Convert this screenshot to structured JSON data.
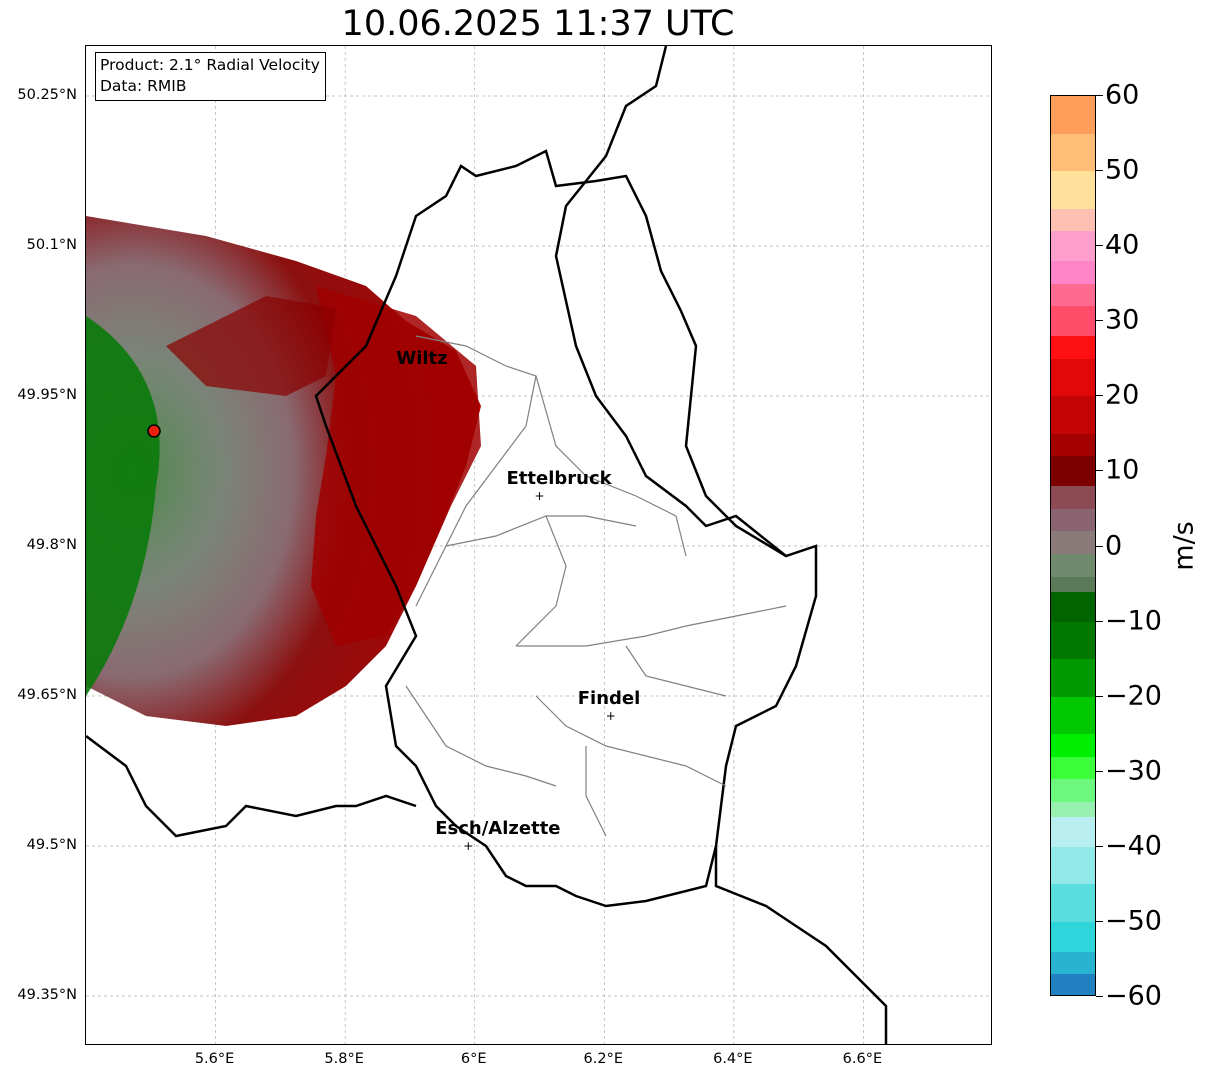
{
  "title": "10.06.2025 11:37 UTC",
  "info": {
    "product": "Product: 2.1° Radial Velocity",
    "data_source": "Data: RMIB"
  },
  "axes": {
    "lat_labels": [
      {
        "lat": 50.25,
        "label": "50.25°N"
      },
      {
        "lat": 50.1,
        "label": "50.1°N"
      },
      {
        "lat": 49.95,
        "label": "49.95°N"
      },
      {
        "lat": 49.8,
        "label": "49.8°N"
      },
      {
        "lat": 49.65,
        "label": "49.65°N"
      },
      {
        "lat": 49.5,
        "label": "49.5°N"
      },
      {
        "lat": 49.35,
        "label": "49.35°N"
      }
    ],
    "lon_labels": [
      {
        "lon": 5.6,
        "label": "5.6°E"
      },
      {
        "lon": 5.8,
        "label": "5.8°E"
      },
      {
        "lon": 6.0,
        "label": "6°E"
      },
      {
        "lon": 6.2,
        "label": "6.2°E"
      },
      {
        "lon": 6.4,
        "label": "6.4°E"
      },
      {
        "lon": 6.6,
        "label": "6.6°E"
      }
    ],
    "lon_range": [
      5.4,
      6.8
    ],
    "lat_range": [
      49.3,
      50.3
    ],
    "grid": true
  },
  "cities": [
    {
      "name": "Wiltz",
      "lon": 5.93,
      "lat": 49.97,
      "marker": false
    },
    {
      "name": "Ettelbruck",
      "lon": 6.1,
      "lat": 49.85,
      "marker": true
    },
    {
      "name": "Findel",
      "lon": 6.21,
      "lat": 49.63,
      "marker": true
    },
    {
      "name": "Esch/Alzette",
      "lon": 5.99,
      "lat": 49.5,
      "marker": true
    }
  ],
  "radar_site": {
    "lon": 5.505,
    "lat": 49.915,
    "color": "#e8200c"
  },
  "colorbar": {
    "unit": "m/s",
    "min": -60,
    "max": 60,
    "ticks": [
      {
        "value": 60,
        "label": "60"
      },
      {
        "value": 50,
        "label": "50"
      },
      {
        "value": 40,
        "label": "40"
      },
      {
        "value": 30,
        "label": "30"
      },
      {
        "value": 20,
        "label": "20"
      },
      {
        "value": 10,
        "label": "10"
      },
      {
        "value": 0,
        "label": "0"
      },
      {
        "value": -10,
        "label": "−10"
      },
      {
        "value": -20,
        "label": "−20"
      },
      {
        "value": -30,
        "label": "−30"
      },
      {
        "value": -40,
        "label": "−40"
      },
      {
        "value": -50,
        "label": "−50"
      },
      {
        "value": -60,
        "label": "−60"
      }
    ],
    "stops": [
      {
        "from": 55,
        "to": 60,
        "color": "#ff9e5a"
      },
      {
        "from": 50,
        "to": 55,
        "color": "#ffbe78"
      },
      {
        "from": 45,
        "to": 50,
        "color": "#ffe19b"
      },
      {
        "from": 42,
        "to": 45,
        "color": "#ffc0b4"
      },
      {
        "from": 38,
        "to": 42,
        "color": "#ff9ecb"
      },
      {
        "from": 35,
        "to": 38,
        "color": "#ff84c8"
      },
      {
        "from": 32,
        "to": 35,
        "color": "#ff6a90"
      },
      {
        "from": 28,
        "to": 32,
        "color": "#ff4d6a"
      },
      {
        "from": 25,
        "to": 28,
        "color": "#ff1010"
      },
      {
        "from": 20,
        "to": 25,
        "color": "#e00808"
      },
      {
        "from": 15,
        "to": 20,
        "color": "#c20404"
      },
      {
        "from": 12,
        "to": 15,
        "color": "#a40000"
      },
      {
        "from": 8,
        "to": 12,
        "color": "#7c0000"
      },
      {
        "from": 5,
        "to": 8,
        "color": "#8c4a52"
      },
      {
        "from": 2,
        "to": 5,
        "color": "#8a6470"
      },
      {
        "from": -1,
        "to": 2,
        "color": "#8a7a7a"
      },
      {
        "from": -4,
        "to": -1,
        "color": "#6f8a6c"
      },
      {
        "from": -6,
        "to": -4,
        "color": "#5a7a58"
      },
      {
        "from": -10,
        "to": -6,
        "color": "#006400"
      },
      {
        "from": -15,
        "to": -10,
        "color": "#007800"
      },
      {
        "from": -20,
        "to": -15,
        "color": "#009a00"
      },
      {
        "from": -25,
        "to": -20,
        "color": "#00c800"
      },
      {
        "from": -28,
        "to": -25,
        "color": "#00ee00"
      },
      {
        "from": -31,
        "to": -28,
        "color": "#3cff3c"
      },
      {
        "from": -34,
        "to": -31,
        "color": "#6cf87c"
      },
      {
        "from": -36,
        "to": -34,
        "color": "#98f0b0"
      },
      {
        "from": -40,
        "to": -36,
        "color": "#b8eef0"
      },
      {
        "from": -45,
        "to": -40,
        "color": "#90e8e8"
      },
      {
        "from": -50,
        "to": -45,
        "color": "#5adddd"
      },
      {
        "from": -54,
        "to": -50,
        "color": "#2ed6dc"
      },
      {
        "from": -57,
        "to": -54,
        "color": "#28b4d0"
      },
      {
        "from": -60,
        "to": -57,
        "color": "#2080c0"
      }
    ]
  }
}
